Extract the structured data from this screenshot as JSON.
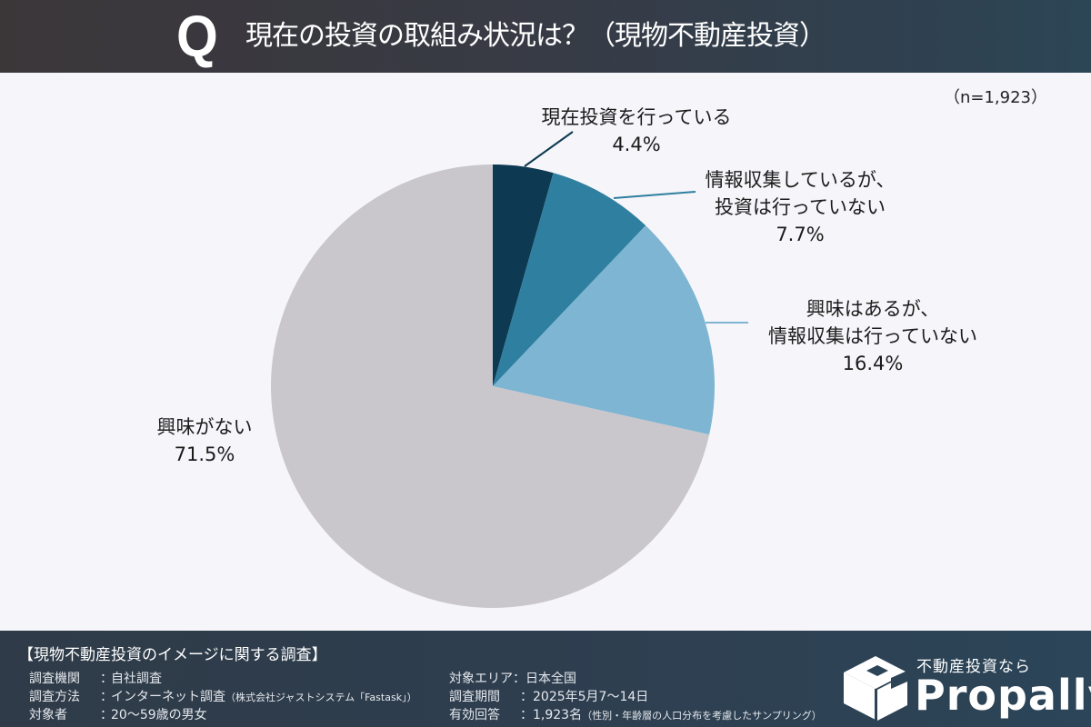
{
  "header": {
    "q_mark": "Q",
    "title": "現在の投資の取組み状況は？（現物不動産投資）"
  },
  "sample_size": "（n=1,923）",
  "chart_data": {
    "type": "pie",
    "title": "現在の投資の取組み状況は？（現物不動産投資）",
    "n": 1923,
    "categories": [
      "現在投資を行っている",
      "情報収集しているが、投資は行っていない",
      "興味はあるが、情報収集は行っていない",
      "興味がない"
    ],
    "values": [
      4.4,
      7.7,
      16.4,
      71.5
    ],
    "unit": "%",
    "colors": [
      "#0d3a52",
      "#2f7fa0",
      "#7db5d2",
      "#c9c7cc"
    ],
    "start_angle": "12 o'clock",
    "direction": "clockwise"
  },
  "labels": [
    {
      "lines": [
        "現在投資を行っている"
      ],
      "value": "4.4%"
    },
    {
      "lines": [
        "情報収集しているが、",
        "投資は行っていない"
      ],
      "value": "7.7%"
    },
    {
      "lines": [
        "興味はあるが、",
        "情報収集は行っていない"
      ],
      "value": "16.4%"
    },
    {
      "lines": [
        "興味がない"
      ],
      "value": "71.5%"
    }
  ],
  "footer": {
    "title": "【現物不動産投資のイメージに関する調査】",
    "left": [
      {
        "key": "調査機関",
        "sep": "：",
        "value": "自社調査",
        "note": ""
      },
      {
        "key": "調査方法",
        "sep": "：",
        "value": "インターネット調査",
        "note": "（株式会社ジャストシステム「Fastask」）"
      },
      {
        "key": "対象者",
        "sep": "：",
        "value": "20〜59歳の男女",
        "note": ""
      }
    ],
    "right": [
      {
        "key": "対象エリア",
        "sep": "：",
        "value": "日本全国",
        "note": ""
      },
      {
        "key": "調査期間",
        "sep": "：",
        "value": "2025年5月7〜14日",
        "note": ""
      },
      {
        "key": "有効回答",
        "sep": "：",
        "value": "1,923名",
        "note": "（性別・年齢層の人口分布を考慮したサンプリング）"
      }
    ]
  },
  "logo": {
    "tagline": "不動産投資なら",
    "name": "Propally",
    "icon": "box-logo-icon"
  }
}
